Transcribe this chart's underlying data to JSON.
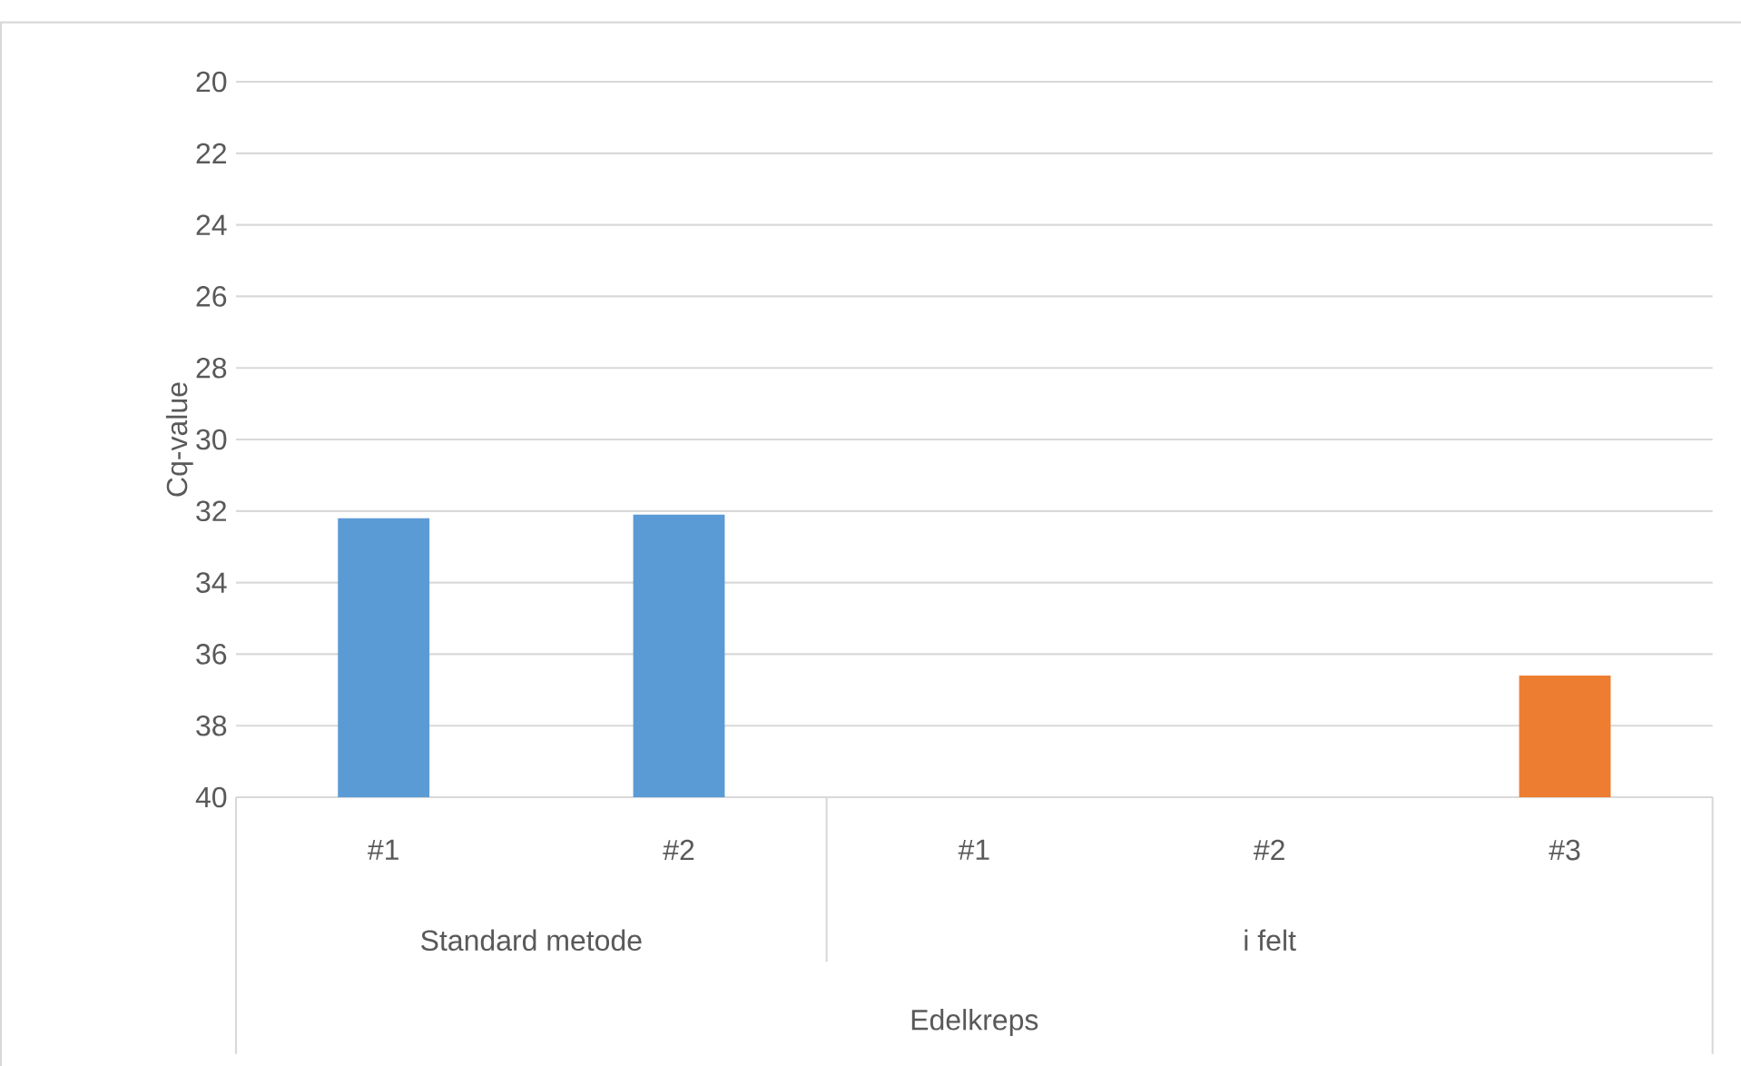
{
  "chart_data": {
    "type": "bar",
    "ylabel": "Cq-value",
    "categories": [
      "#1",
      "#2",
      "#1",
      "#2",
      "#3"
    ],
    "base": [
      40,
      40,
      null,
      null,
      40
    ],
    "values": [
      -7.8,
      -7.9,
      null,
      null,
      -3.4
    ],
    "colors": [
      "#5b9bd5",
      "#5b9bd5",
      "#5b9bd5",
      "#5b9bd5",
      "#ed7d31"
    ],
    "ylim": [
      40,
      20
    ],
    "yticks": [
      20,
      22,
      24,
      26,
      28,
      30,
      32,
      34,
      36,
      38,
      40
    ],
    "grid": "y",
    "annotations": [
      "Standard metode",
      "i felt",
      "Edelkreps"
    ]
  }
}
